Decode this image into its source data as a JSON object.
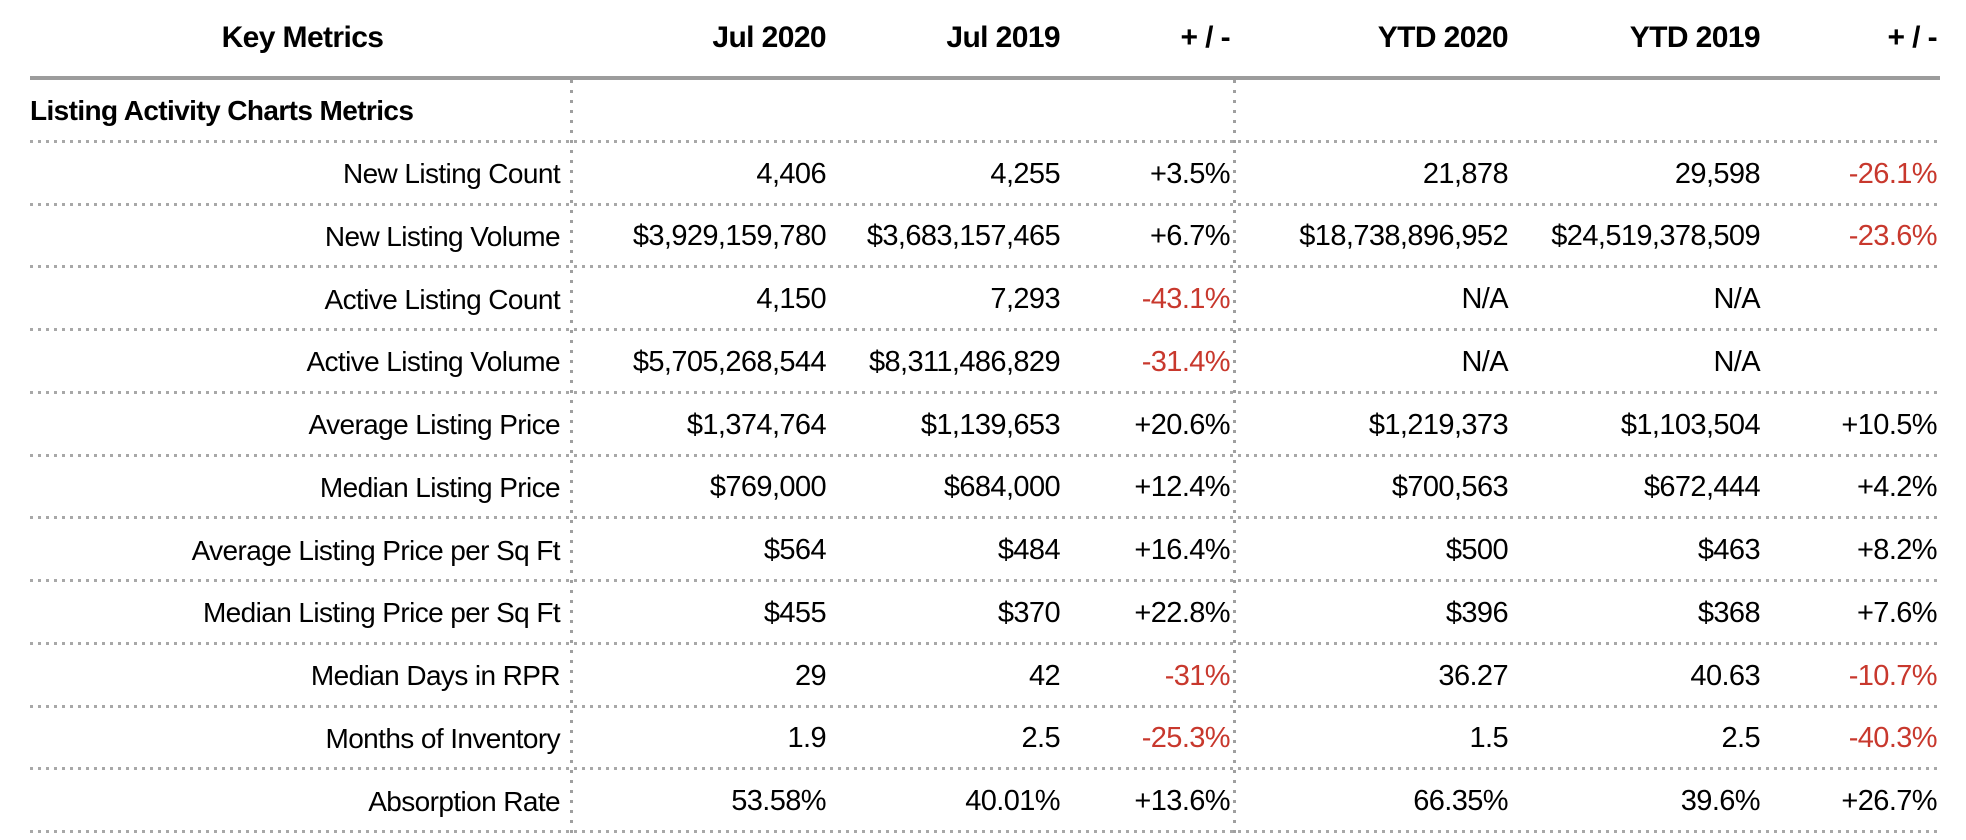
{
  "table": {
    "columns": [
      "Key Metrics",
      "Jul 2020",
      "Jul 2019",
      "+ / -",
      "YTD 2020",
      "YTD 2019",
      "+ / -"
    ],
    "section": "Listing Activity Charts Metrics",
    "rows": [
      {
        "label": "New Listing Count",
        "values": [
          "4,406",
          "4,255",
          "+3.5%",
          "21,878",
          "29,598",
          "-26.1%"
        ]
      },
      {
        "label": "New Listing Volume",
        "values": [
          "$3,929,159,780",
          "$3,683,157,465",
          "+6.7%",
          "$18,738,896,952",
          "$24,519,378,509",
          "-23.6%"
        ]
      },
      {
        "label": "Active Listing Count",
        "values": [
          "4,150",
          "7,293",
          "-43.1%",
          "N/A",
          "N/A",
          ""
        ]
      },
      {
        "label": "Active Listing Volume",
        "values": [
          "$5,705,268,544",
          "$8,311,486,829",
          "-31.4%",
          "N/A",
          "N/A",
          ""
        ]
      },
      {
        "label": "Average Listing Price",
        "values": [
          "$1,374,764",
          "$1,139,653",
          "+20.6%",
          "$1,219,373",
          "$1,103,504",
          "+10.5%"
        ]
      },
      {
        "label": "Median Listing Price",
        "values": [
          "$769,000",
          "$684,000",
          "+12.4%",
          "$700,563",
          "$672,444",
          "+4.2%"
        ]
      },
      {
        "label": "Average Listing Price per Sq Ft",
        "values": [
          "$564",
          "$484",
          "+16.4%",
          "$500",
          "$463",
          "+8.2%"
        ]
      },
      {
        "label": "Median Listing Price per Sq Ft",
        "values": [
          "$455",
          "$370",
          "+22.8%",
          "$396",
          "$368",
          "+7.6%"
        ]
      },
      {
        "label": "Median Days in RPR",
        "values": [
          "29",
          "42",
          "-31%",
          "36.27",
          "40.63",
          "-10.7%"
        ]
      },
      {
        "label": "Months of Inventory",
        "values": [
          "1.9",
          "2.5",
          "-25.3%",
          "1.5",
          "2.5",
          "-40.3%"
        ]
      },
      {
        "label": "Absorption Rate",
        "values": [
          "53.58%",
          "40.01%",
          "+13.6%",
          "66.35%",
          "39.6%",
          "+26.7%"
        ]
      }
    ],
    "colors": {
      "negative_value": "#c8382d",
      "header_rule": "#9c9c9c",
      "dotted_line": "#a8a8a8"
    }
  }
}
